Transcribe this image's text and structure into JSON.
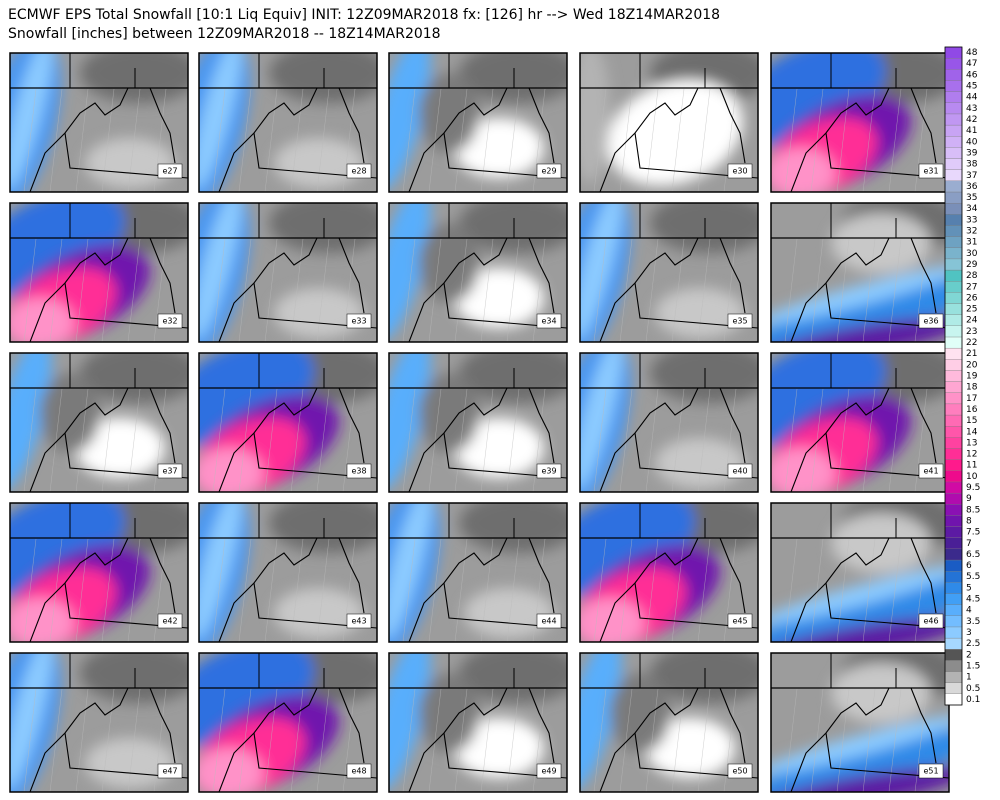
{
  "header": {
    "title": "ECMWF EPS Total Snowfall [10:1 Liq Equiv] INIT: 12Z09MAR2018 fx: [126] hr --> Wed 18Z14MAR2018",
    "subtitle": "Snowfall [inches] between 12Z09MAR2018 -- 18Z14MAR2018"
  },
  "panels": [
    {
      "label": "e27"
    },
    {
      "label": "e28"
    },
    {
      "label": "e29"
    },
    {
      "label": "e30"
    },
    {
      "label": "e31"
    },
    {
      "label": "e32"
    },
    {
      "label": "e33"
    },
    {
      "label": "e34"
    },
    {
      "label": "e35"
    },
    {
      "label": "e36"
    },
    {
      "label": "e37"
    },
    {
      "label": "e38"
    },
    {
      "label": "e39"
    },
    {
      "label": "e40"
    },
    {
      "label": "e41"
    },
    {
      "label": "e42"
    },
    {
      "label": "e43"
    },
    {
      "label": "e44"
    },
    {
      "label": "e45"
    },
    {
      "label": "e46"
    },
    {
      "label": "e47"
    },
    {
      "label": "e48"
    },
    {
      "label": "e49"
    },
    {
      "label": "e50"
    },
    {
      "label": "e51"
    }
  ],
  "colorbar": {
    "levels": [
      0.1,
      0.5,
      1,
      1.5,
      2,
      2.5,
      3,
      3.5,
      4,
      4.5,
      5,
      5.5,
      6,
      6.5,
      7,
      7.5,
      8,
      8.5,
      9,
      9.5,
      10,
      11,
      12,
      13,
      14,
      15,
      16,
      17,
      18,
      19,
      20,
      21,
      22,
      23,
      24,
      25,
      26,
      27,
      28,
      29,
      30,
      31,
      32,
      33,
      34,
      35,
      36,
      37,
      38,
      39,
      40,
      41,
      42,
      43,
      44,
      45,
      46,
      47,
      48
    ],
    "colors": [
      "#ffffff",
      "#d9d9d9",
      "#b3b3b3",
      "#8c8c8c",
      "#555555",
      "#a6d8ff",
      "#8ccbff",
      "#73bdff",
      "#59aefc",
      "#419ff5",
      "#2f8ae8",
      "#2473d6",
      "#1a5cc4",
      "#3b2a8c",
      "#4a1f96",
      "#5c1aa3",
      "#7014ad",
      "#8a10b3",
      "#b00cae",
      "#d10aa4",
      "#ee0a8c",
      "#ff1a8c",
      "#ff2e96",
      "#ff42a0",
      "#ff56aa",
      "#ff6ab4",
      "#ff7ebe",
      "#ff92c8",
      "#ffa6d2",
      "#ffbadc",
      "#ffcee6",
      "#ffe2f0",
      "#e0fff8",
      "#c8f5ef",
      "#b0ebe6",
      "#98e1dd",
      "#80d7d4",
      "#68cdcb",
      "#50c3c2",
      "#86c4d6",
      "#7ab3cc",
      "#6ea2c2",
      "#6291b8",
      "#5680ae",
      "#7a8fb8",
      "#8a9ec4",
      "#9aadd0",
      "#e8d8fc",
      "#e0cbfa",
      "#d8bef8",
      "#d0b1f6",
      "#c8a4f4",
      "#c097f2",
      "#b88af0",
      "#b07dee",
      "#a870ec",
      "#a063ea",
      "#9856e8",
      "#9049e6"
    ]
  }
}
